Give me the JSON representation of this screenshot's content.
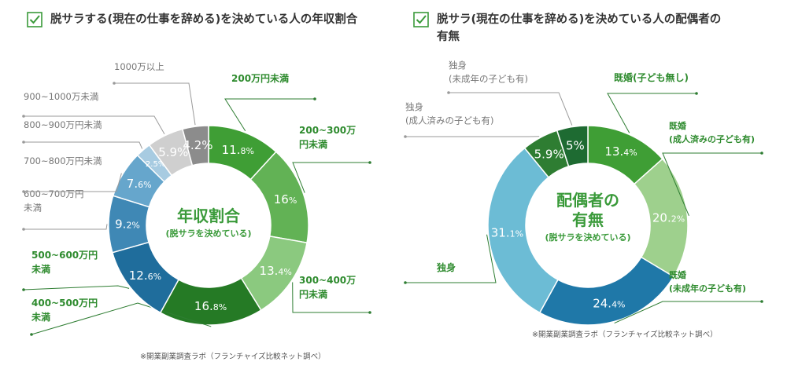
{
  "colors": {
    "accent_green": "#3a9a3a",
    "label_green": "#2e8b2e",
    "label_gray": "#777777",
    "leader_line": "#2e7d32",
    "leader_gray": "#9a9a9a"
  },
  "left": {
    "title": "脱サラする(現在の仕事を辞める)を決めている人の年収割合",
    "center_title": "年収割合",
    "center_sub": "(脱サラを決めている)",
    "source": "※開業副業調査ラボ（フランチャイズ比較ネット調べ）",
    "check_icon": "checkbox-check-icon"
  },
  "right": {
    "title_line1": "脱サラ(現在の仕事を辞める)を決めている人の配偶者の",
    "title_line2": "有無",
    "center_title_line1": "配偶者の",
    "center_title_line2": "有無",
    "center_sub": "(脱サラを決めている)",
    "source": "※開業副業調査ラボ（フランチャイズ比較ネット調べ）",
    "check_icon": "checkbox-check-icon"
  },
  "chart_data": [
    {
      "type": "pie",
      "title": "脱サラする(現在の仕事を辞める)を決めている人の年収割合",
      "categories": [
        "200万円未満",
        "200~300万円未満",
        "300~400万円未満",
        "400~500万円未満",
        "500~600万円未満",
        "600~700万円未満",
        "700~800万円未満",
        "800~900万円未満",
        "900~1000万未満",
        "1000万以上"
      ],
      "category_lines": [
        [
          "200万円未満"
        ],
        [
          "200~300万",
          "円未満"
        ],
        [
          "300~400万",
          "円未満"
        ],
        [
          "400~500万円",
          "未満"
        ],
        [
          "500~600万円",
          "未満"
        ],
        [
          "600~700万円",
          "未満"
        ],
        [
          "700~800万円未満"
        ],
        [
          "800~900万円未満"
        ],
        [
          "900~1000万未満"
        ],
        [
          "1000万以上"
        ]
      ],
      "values": [
        11.8,
        16,
        13.4,
        16.8,
        12.6,
        9.2,
        7.6,
        2.5,
        5.9,
        4.2
      ],
      "value_labels": [
        [
          "11.",
          "8%"
        ],
        [
          "16",
          "%"
        ],
        [
          "13.",
          "4%"
        ],
        [
          "16.",
          "8%"
        ],
        [
          "12.",
          "6%"
        ],
        [
          "9.",
          "2%"
        ],
        [
          "7.",
          "6%"
        ],
        [
          "2.5%",
          ""
        ],
        [
          "5.9%",
          ""
        ],
        [
          "4.2%",
          ""
        ]
      ],
      "colors": [
        "#3f9e35",
        "#62b255",
        "#8bc97f",
        "#257a25",
        "#1f6d9c",
        "#3f88b5",
        "#66a6cc",
        "#a7cbe1",
        "#cfcfcf",
        "#8c8c8c"
      ],
      "label_side": [
        "right",
        "right",
        "right",
        "left",
        "left",
        "left",
        "left",
        "left",
        "left",
        "left"
      ],
      "label_color_class": [
        "green",
        "green",
        "green",
        "green",
        "green",
        "gray",
        "gray",
        "gray",
        "gray",
        "gray"
      ]
    },
    {
      "type": "pie",
      "title": "脱サラ(現在の仕事を辞める)を決めている人の配偶者の有無",
      "categories": [
        "既婚(子ども無し)",
        "既婚(成人済みの子ども有)",
        "既婚(未成年の子ども有)",
        "独身",
        "独身(成人済みの子ども有)",
        "独身(未成年の子ども有)"
      ],
      "category_lines": [
        [
          "既婚(子ども無し)"
        ],
        [
          "既婚",
          "(成人済みの子ども有)"
        ],
        [
          "既婚",
          "(未成年の子ども有)"
        ],
        [
          "独身"
        ],
        [
          "独身",
          "(成人済みの子ども有)"
        ],
        [
          "独身",
          "(未成年の子ども有)"
        ]
      ],
      "values": [
        13.4,
        20.2,
        24.4,
        31.1,
        5.9,
        5
      ],
      "value_labels": [
        [
          "13.",
          "4%"
        ],
        [
          "20.",
          "2%"
        ],
        [
          "24.",
          "4%"
        ],
        [
          "31.",
          "1%"
        ],
        [
          "5.9%",
          ""
        ],
        [
          "5%",
          ""
        ]
      ],
      "colors": [
        "#3f9e35",
        "#9ed08d",
        "#1f78a8",
        "#6cbcd5",
        "#2e7d32",
        "#1e6b32"
      ],
      "label_side": [
        "right",
        "right",
        "right",
        "left",
        "left",
        "left"
      ],
      "label_color_class": [
        "green",
        "green",
        "green",
        "green",
        "gray",
        "gray"
      ]
    }
  ]
}
